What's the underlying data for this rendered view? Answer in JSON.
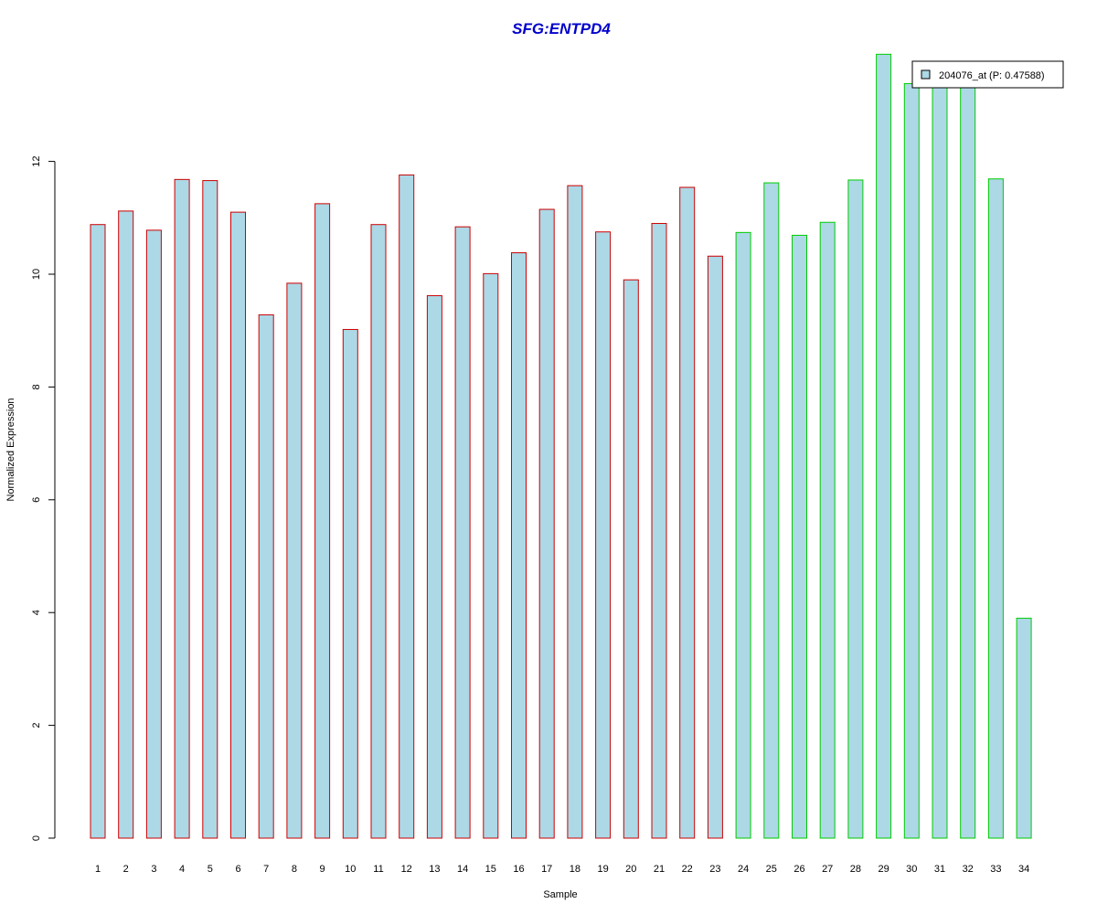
{
  "chart_data": {
    "type": "bar",
    "title": "SFG:ENTPD4",
    "xlabel": "Sample",
    "ylabel": "Normalized Expression",
    "ylim": [
      0,
      14
    ],
    "yticks": [
      0,
      2,
      4,
      6,
      8,
      10,
      12
    ],
    "grid": false,
    "legend_position": "top-right",
    "categories": [
      "1",
      "2",
      "3",
      "4",
      "5",
      "6",
      "7",
      "8",
      "9",
      "10",
      "11",
      "12",
      "13",
      "14",
      "15",
      "16",
      "17",
      "18",
      "19",
      "20",
      "21",
      "22",
      "23",
      "24",
      "25",
      "26",
      "27",
      "28",
      "29",
      "30",
      "31",
      "32",
      "33",
      "34"
    ],
    "series": [
      {
        "name": "204076_at (P: 0.47588)",
        "values": [
          10.88,
          11.12,
          10.78,
          11.68,
          11.66,
          11.1,
          9.28,
          9.84,
          11.25,
          9.02,
          10.88,
          11.76,
          9.62,
          10.84,
          10.01,
          10.38,
          11.15,
          11.57,
          10.75,
          9.9,
          10.9,
          11.54,
          10.32,
          10.74,
          11.62,
          10.69,
          10.92,
          11.67,
          13.9,
          13.38,
          13.42,
          13.42,
          11.69,
          3.9
        ]
      }
    ],
    "groups": [
      {
        "range": [
          1,
          23
        ],
        "border_color": "#cc0000"
      },
      {
        "range": [
          24,
          34
        ],
        "border_color": "#00cc00"
      }
    ],
    "colors": {
      "bar_fill": "#add8e6",
      "title": "#0000cc",
      "axis": "#000000"
    }
  }
}
